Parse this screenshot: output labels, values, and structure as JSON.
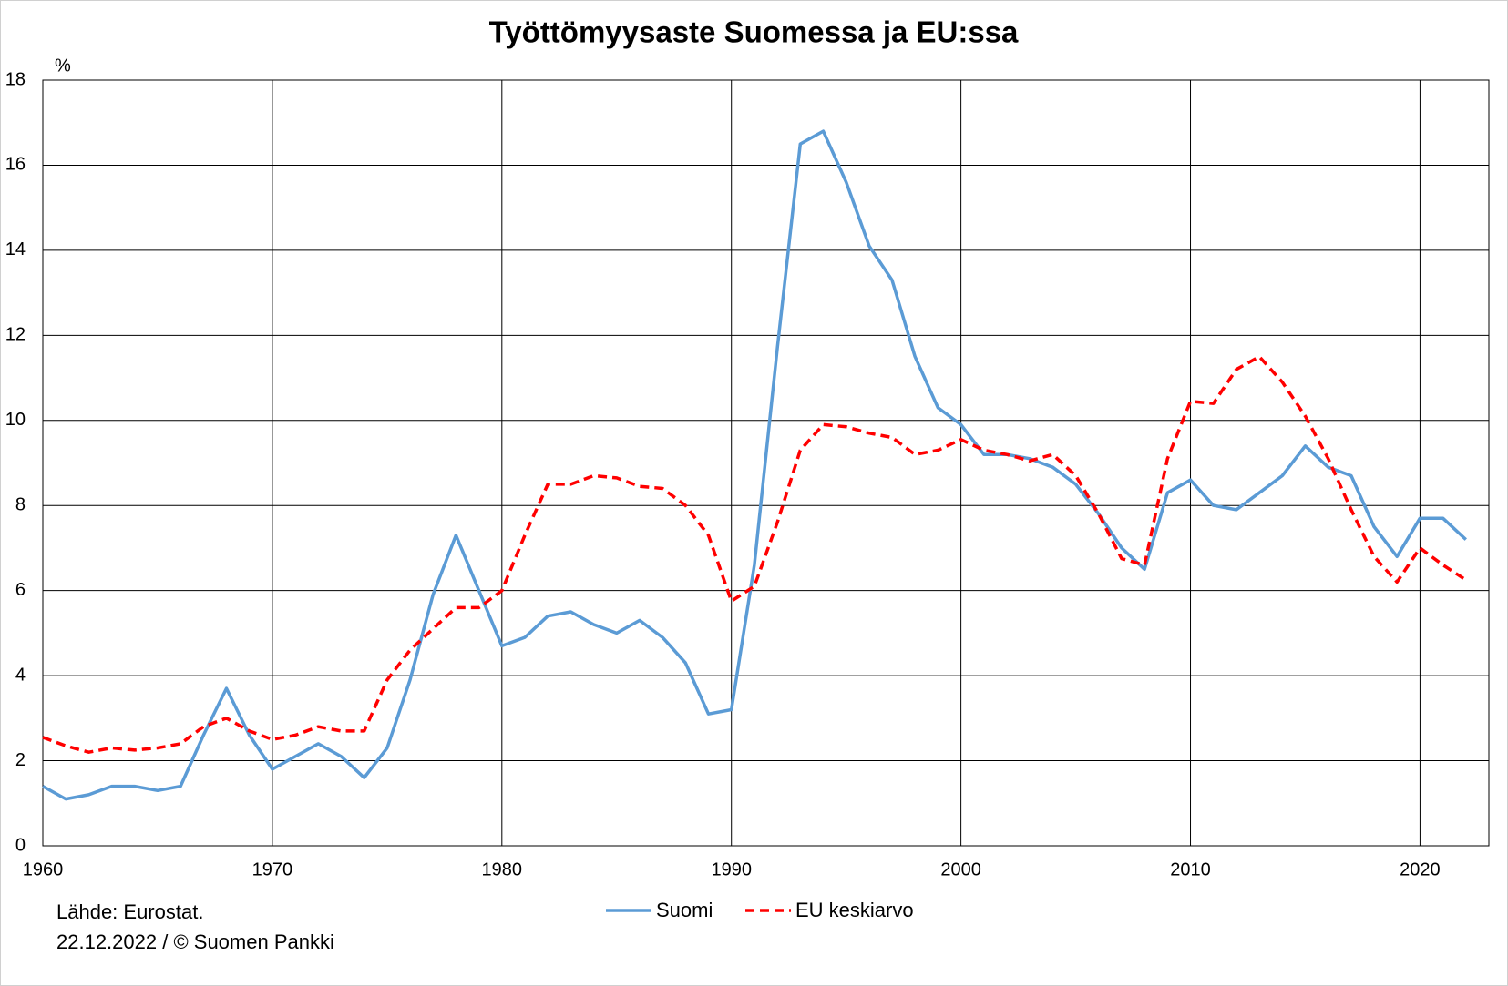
{
  "chart_data": {
    "type": "line",
    "title": "Työttömyysaste Suomessa ja EU:ssa",
    "y_unit": "%",
    "source": "Lähde: Eurostat.",
    "note": "22.12.2022  / © Suomen Pankki",
    "x": [
      1960,
      1961,
      1962,
      1963,
      1964,
      1965,
      1966,
      1967,
      1968,
      1969,
      1970,
      1971,
      1972,
      1973,
      1974,
      1975,
      1976,
      1977,
      1978,
      1979,
      1980,
      1981,
      1982,
      1983,
      1984,
      1985,
      1986,
      1987,
      1988,
      1989,
      1990,
      1991,
      1992,
      1993,
      1994,
      1995,
      1996,
      1997,
      1998,
      1999,
      2000,
      2001,
      2002,
      2003,
      2004,
      2005,
      2006,
      2007,
      2008,
      2009,
      2010,
      2011,
      2012,
      2013,
      2014,
      2015,
      2016,
      2017,
      2018,
      2019,
      2020,
      2021,
      2022
    ],
    "series": [
      {
        "name": "Suomi",
        "color": "#5b9bd5",
        "dashed": false,
        "values": [
          1.4,
          1.1,
          1.2,
          1.4,
          1.4,
          1.3,
          1.4,
          2.6,
          3.7,
          2.6,
          1.8,
          2.1,
          2.4,
          2.1,
          1.6,
          2.3,
          3.9,
          5.9,
          7.3,
          6.0,
          4.7,
          4.9,
          5.4,
          5.5,
          5.2,
          5.0,
          5.3,
          4.9,
          4.3,
          3.1,
          3.2,
          6.6,
          11.7,
          16.5,
          16.8,
          15.6,
          14.1,
          13.3,
          11.5,
          10.3,
          9.9,
          9.2,
          9.2,
          9.1,
          8.9,
          8.5,
          7.8,
          7.0,
          6.5,
          8.3,
          8.6,
          8.0,
          7.9,
          8.3,
          8.7,
          9.4,
          8.9,
          8.7,
          7.5,
          6.8,
          7.7,
          7.7,
          7.2
        ]
      },
      {
        "name": "EU keskiarvo",
        "color": "#ff0000",
        "dashed": true,
        "values": [
          2.55,
          2.35,
          2.2,
          2.3,
          2.25,
          2.3,
          2.4,
          2.8,
          3.0,
          2.7,
          2.5,
          2.6,
          2.8,
          2.7,
          2.7,
          3.9,
          4.6,
          5.1,
          5.6,
          5.6,
          6.0,
          7.3,
          8.5,
          8.5,
          8.7,
          8.65,
          8.45,
          8.4,
          8.0,
          7.3,
          5.75,
          6.1,
          7.6,
          9.3,
          9.9,
          9.85,
          9.7,
          9.6,
          9.2,
          9.3,
          9.55,
          9.3,
          9.2,
          9.05,
          9.2,
          8.7,
          7.8,
          6.75,
          6.6,
          9.1,
          10.45,
          10.4,
          11.2,
          11.5,
          10.9,
          10.1,
          9.1,
          7.9,
          6.8,
          6.2,
          7.0,
          6.6,
          6.25
        ]
      }
    ],
    "xlim": [
      1960,
      2023
    ],
    "xticks": [
      1960,
      1970,
      1980,
      1990,
      2000,
      2010,
      2020
    ],
    "ylim": [
      0,
      18
    ],
    "yticks": [
      0,
      2,
      4,
      6,
      8,
      10,
      12,
      14,
      16,
      18
    ],
    "grid": true,
    "legend": "bottom"
  }
}
